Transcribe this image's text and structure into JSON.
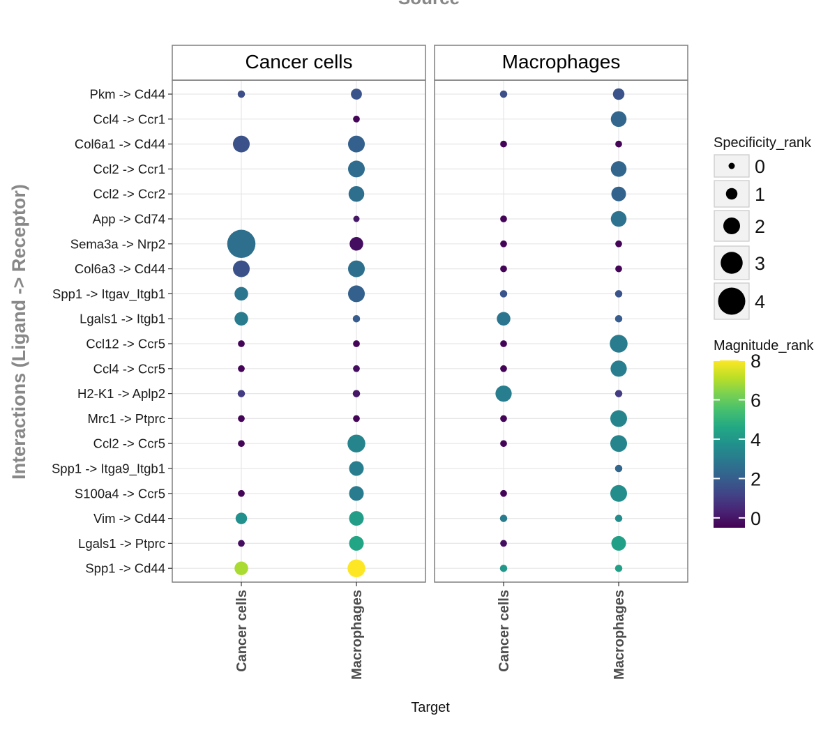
{
  "chart_data": {
    "type": "scatter",
    "title": "Source",
    "xlabel": "Target",
    "ylabel": "Interactions (Ligand -> Receptor)",
    "facets": [
      "Cancer cells",
      "Macrophages"
    ],
    "targets": [
      "Cancer cells",
      "Macrophages"
    ],
    "interactions": [
      "Pkm -> Cd44",
      "Ccl4 -> Ccr1",
      "Col6a1 -> Cd44",
      "Ccl2 -> Ccr1",
      "Ccl2 -> Ccr2",
      "App -> Cd74",
      "Sema3a -> Nrp2",
      "Col6a3 -> Cd44",
      "Spp1 -> Itgav_Itgb1",
      "Lgals1 -> Itgb1",
      "Ccl12 -> Ccr5",
      "Ccl4 -> Ccr5",
      "H2-K1 -> Aplp2",
      "Mrc1 -> Ptprc",
      "Ccl2 -> Ccr5",
      "Spp1 -> Itga9_Itgb1",
      "S100a4 -> Ccr5",
      "Vim -> Cd44",
      "Lgals1 -> Ptprc",
      "Spp1 -> Cd44"
    ],
    "points": [
      {
        "source": "Cancer cells",
        "target": "Cancer cells",
        "interaction": "Pkm -> Cd44",
        "specificity_rank": 0.2,
        "magnitude_rank": 1.5
      },
      {
        "source": "Cancer cells",
        "target": "Macrophages",
        "interaction": "Pkm -> Cd44",
        "specificity_rank": 0.9,
        "magnitude_rank": 1.7
      },
      {
        "source": "Macrophages",
        "target": "Cancer cells",
        "interaction": "Pkm -> Cd44",
        "specificity_rank": 0.2,
        "magnitude_rank": 1.5
      },
      {
        "source": "Macrophages",
        "target": "Macrophages",
        "interaction": "Pkm -> Cd44",
        "specificity_rank": 1.0,
        "magnitude_rank": 1.7
      },
      {
        "source": "Cancer cells",
        "target": "Macrophages",
        "interaction": "Ccl4 -> Ccr1",
        "specificity_rank": 0.1,
        "magnitude_rank": -0.4
      },
      {
        "source": "Macrophages",
        "target": "Macrophages",
        "interaction": "Ccl4 -> Ccr1",
        "specificity_rank": 1.8,
        "magnitude_rank": 2.3
      },
      {
        "source": "Cancer cells",
        "target": "Cancer cells",
        "interaction": "Col6a1 -> Cd44",
        "specificity_rank": 2.0,
        "magnitude_rank": 1.6
      },
      {
        "source": "Cancer cells",
        "target": "Macrophages",
        "interaction": "Col6a1 -> Cd44",
        "specificity_rank": 2.0,
        "magnitude_rank": 2.1
      },
      {
        "source": "Macrophages",
        "target": "Cancer cells",
        "interaction": "Col6a1 -> Cd44",
        "specificity_rank": 0.1,
        "magnitude_rank": -0.4
      },
      {
        "source": "Macrophages",
        "target": "Macrophages",
        "interaction": "Col6a1 -> Cd44",
        "specificity_rank": 0.1,
        "magnitude_rank": -0.4
      },
      {
        "source": "Cancer cells",
        "target": "Macrophages",
        "interaction": "Ccl2 -> Ccr1",
        "specificity_rank": 2.0,
        "magnitude_rank": 2.5
      },
      {
        "source": "Macrophages",
        "target": "Macrophages",
        "interaction": "Ccl2 -> Ccr1",
        "specificity_rank": 1.8,
        "magnitude_rank": 2.3
      },
      {
        "source": "Cancer cells",
        "target": "Macrophages",
        "interaction": "Ccl2 -> Ccr2",
        "specificity_rank": 1.8,
        "magnitude_rank": 2.6
      },
      {
        "source": "Macrophages",
        "target": "Macrophages",
        "interaction": "Ccl2 -> Ccr2",
        "specificity_rank": 1.6,
        "magnitude_rank": 2.2
      },
      {
        "source": "Cancer cells",
        "target": "Macrophages",
        "interaction": "App -> Cd74",
        "specificity_rank": 0.0,
        "magnitude_rank": 0.0
      },
      {
        "source": "Macrophages",
        "target": "Cancer cells",
        "interaction": "App -> Cd74",
        "specificity_rank": 0.1,
        "magnitude_rank": -0.4
      },
      {
        "source": "Macrophages",
        "target": "Macrophages",
        "interaction": "App -> Cd74",
        "specificity_rank": 1.8,
        "magnitude_rank": 2.7
      },
      {
        "source": "Cancer cells",
        "target": "Cancer cells",
        "interaction": "Sema3a -> Nrp2",
        "specificity_rank": 4.2,
        "magnitude_rank": 2.6
      },
      {
        "source": "Cancer cells",
        "target": "Macrophages",
        "interaction": "Sema3a -> Nrp2",
        "specificity_rank": 1.4,
        "magnitude_rank": -0.2
      },
      {
        "source": "Macrophages",
        "target": "Cancer cells",
        "interaction": "Sema3a -> Nrp2",
        "specificity_rank": 0.1,
        "magnitude_rank": -0.4
      },
      {
        "source": "Macrophages",
        "target": "Macrophages",
        "interaction": "Sema3a -> Nrp2",
        "specificity_rank": 0.1,
        "magnitude_rank": -0.4
      },
      {
        "source": "Cancer cells",
        "target": "Cancer cells",
        "interaction": "Col6a3 -> Cd44",
        "specificity_rank": 2.0,
        "magnitude_rank": 1.6
      },
      {
        "source": "Cancer cells",
        "target": "Macrophages",
        "interaction": "Col6a3 -> Cd44",
        "specificity_rank": 2.0,
        "magnitude_rank": 2.6
      },
      {
        "source": "Macrophages",
        "target": "Cancer cells",
        "interaction": "Col6a3 -> Cd44",
        "specificity_rank": 0.1,
        "magnitude_rank": -0.4
      },
      {
        "source": "Macrophages",
        "target": "Macrophages",
        "interaction": "Col6a3 -> Cd44",
        "specificity_rank": 0.1,
        "magnitude_rank": -0.4
      },
      {
        "source": "Cancer cells",
        "target": "Cancer cells",
        "interaction": "Spp1 -> Itgav_Itgb1",
        "specificity_rank": 1.4,
        "magnitude_rank": 2.8
      },
      {
        "source": "Cancer cells",
        "target": "Macrophages",
        "interaction": "Spp1 -> Itgav_Itgb1",
        "specificity_rank": 2.0,
        "magnitude_rank": 2.1
      },
      {
        "source": "Macrophages",
        "target": "Cancer cells",
        "interaction": "Spp1 -> Itgav_Itgb1",
        "specificity_rank": 0.2,
        "magnitude_rank": 1.7
      },
      {
        "source": "Macrophages",
        "target": "Macrophages",
        "interaction": "Spp1 -> Itgav_Itgb1",
        "specificity_rank": 0.2,
        "magnitude_rank": 1.7
      },
      {
        "source": "Cancer cells",
        "target": "Cancer cells",
        "interaction": "Lgals1 -> Itgb1",
        "specificity_rank": 1.4,
        "magnitude_rank": 3.0
      },
      {
        "source": "Cancer cells",
        "target": "Macrophages",
        "interaction": "Lgals1 -> Itgb1",
        "specificity_rank": 0.2,
        "magnitude_rank": 2.0
      },
      {
        "source": "Macrophages",
        "target": "Cancer cells",
        "interaction": "Lgals1 -> Itgb1",
        "specificity_rank": 1.4,
        "magnitude_rank": 2.8
      },
      {
        "source": "Macrophages",
        "target": "Macrophages",
        "interaction": "Lgals1 -> Itgb1",
        "specificity_rank": 0.2,
        "magnitude_rank": 2.0
      },
      {
        "source": "Cancer cells",
        "target": "Cancer cells",
        "interaction": "Ccl12 -> Ccr5",
        "specificity_rank": 0.1,
        "magnitude_rank": -0.4
      },
      {
        "source": "Cancer cells",
        "target": "Macrophages",
        "interaction": "Ccl12 -> Ccr5",
        "specificity_rank": 0.1,
        "magnitude_rank": -0.4
      },
      {
        "source": "Macrophages",
        "target": "Cancer cells",
        "interaction": "Ccl12 -> Ccr5",
        "specificity_rank": 0.1,
        "magnitude_rank": -0.4
      },
      {
        "source": "Macrophages",
        "target": "Macrophages",
        "interaction": "Ccl12 -> Ccr5",
        "specificity_rank": 2.2,
        "magnitude_rank": 3.0
      },
      {
        "source": "Cancer cells",
        "target": "Cancer cells",
        "interaction": "Ccl4 -> Ccr5",
        "specificity_rank": 0.1,
        "magnitude_rank": -0.4
      },
      {
        "source": "Cancer cells",
        "target": "Macrophages",
        "interaction": "Ccl4 -> Ccr5",
        "specificity_rank": 0.1,
        "magnitude_rank": -0.2
      },
      {
        "source": "Macrophages",
        "target": "Cancer cells",
        "interaction": "Ccl4 -> Ccr5",
        "specificity_rank": 0.1,
        "magnitude_rank": -0.4
      },
      {
        "source": "Macrophages",
        "target": "Macrophages",
        "interaction": "Ccl4 -> Ccr5",
        "specificity_rank": 1.9,
        "magnitude_rank": 3.1
      },
      {
        "source": "Cancer cells",
        "target": "Cancer cells",
        "interaction": "H2-K1 -> Aplp2",
        "specificity_rank": 0.2,
        "magnitude_rank": 1.0
      },
      {
        "source": "Cancer cells",
        "target": "Macrophages",
        "interaction": "H2-K1 -> Aplp2",
        "specificity_rank": 0.2,
        "magnitude_rank": 0.0
      },
      {
        "source": "Macrophages",
        "target": "Cancer cells",
        "interaction": "H2-K1 -> Aplp2",
        "specificity_rank": 1.9,
        "magnitude_rank": 3.1
      },
      {
        "source": "Macrophages",
        "target": "Macrophages",
        "interaction": "H2-K1 -> Aplp2",
        "specificity_rank": 0.2,
        "magnitude_rank": 1.0
      },
      {
        "source": "Cancer cells",
        "target": "Cancer cells",
        "interaction": "Mrc1 -> Ptprc",
        "specificity_rank": 0.1,
        "magnitude_rank": -0.4
      },
      {
        "source": "Cancer cells",
        "target": "Macrophages",
        "interaction": "Mrc1 -> Ptprc",
        "specificity_rank": 0.1,
        "magnitude_rank": -0.4
      },
      {
        "source": "Macrophages",
        "target": "Cancer cells",
        "interaction": "Mrc1 -> Ptprc",
        "specificity_rank": 0.1,
        "magnitude_rank": -0.4
      },
      {
        "source": "Macrophages",
        "target": "Macrophages",
        "interaction": "Mrc1 -> Ptprc",
        "specificity_rank": 2.0,
        "magnitude_rank": 3.3
      },
      {
        "source": "Cancer cells",
        "target": "Cancer cells",
        "interaction": "Ccl2 -> Ccr5",
        "specificity_rank": 0.1,
        "magnitude_rank": -0.4
      },
      {
        "source": "Cancer cells",
        "target": "Macrophages",
        "interaction": "Ccl2 -> Ccr5",
        "specificity_rank": 2.2,
        "magnitude_rank": 3.3
      },
      {
        "source": "Macrophages",
        "target": "Cancer cells",
        "interaction": "Ccl2 -> Ccr5",
        "specificity_rank": 0.1,
        "magnitude_rank": -0.4
      },
      {
        "source": "Macrophages",
        "target": "Macrophages",
        "interaction": "Ccl2 -> Ccr5",
        "specificity_rank": 2.0,
        "magnitude_rank": 3.3
      },
      {
        "source": "Cancer cells",
        "target": "Macrophages",
        "interaction": "Spp1 -> Itga9_Itgb1",
        "specificity_rank": 1.6,
        "magnitude_rank": 3.1
      },
      {
        "source": "Macrophages",
        "target": "Macrophages",
        "interaction": "Spp1 -> Itga9_Itgb1",
        "specificity_rank": 0.2,
        "magnitude_rank": 2.3
      },
      {
        "source": "Cancer cells",
        "target": "Cancer cells",
        "interaction": "S100a4 -> Ccr5",
        "specificity_rank": 0.1,
        "magnitude_rank": -0.4
      },
      {
        "source": "Cancer cells",
        "target": "Macrophages",
        "interaction": "S100a4 -> Ccr5",
        "specificity_rank": 1.6,
        "magnitude_rank": 3.0
      },
      {
        "source": "Macrophages",
        "target": "Cancer cells",
        "interaction": "S100a4 -> Ccr5",
        "specificity_rank": 0.1,
        "magnitude_rank": -0.4
      },
      {
        "source": "Macrophages",
        "target": "Macrophages",
        "interaction": "S100a4 -> Ccr5",
        "specificity_rank": 2.0,
        "magnitude_rank": 3.6
      },
      {
        "source": "Cancer cells",
        "target": "Cancer cells",
        "interaction": "Vim -> Cd44",
        "specificity_rank": 1.0,
        "magnitude_rank": 3.7
      },
      {
        "source": "Cancer cells",
        "target": "Macrophages",
        "interaction": "Vim -> Cd44",
        "specificity_rank": 1.6,
        "magnitude_rank": 4.2
      },
      {
        "source": "Macrophages",
        "target": "Cancer cells",
        "interaction": "Vim -> Cd44",
        "specificity_rank": 0.2,
        "magnitude_rank": 3.0
      },
      {
        "source": "Macrophages",
        "target": "Macrophages",
        "interaction": "Vim -> Cd44",
        "specificity_rank": 0.2,
        "magnitude_rank": 3.6
      },
      {
        "source": "Cancer cells",
        "target": "Cancer cells",
        "interaction": "Lgals1 -> Ptprc",
        "specificity_rank": 0.1,
        "magnitude_rank": -0.2
      },
      {
        "source": "Cancer cells",
        "target": "Macrophages",
        "interaction": "Lgals1 -> Ptprc",
        "specificity_rank": 1.6,
        "magnitude_rank": 4.5
      },
      {
        "source": "Macrophages",
        "target": "Cancer cells",
        "interaction": "Lgals1 -> Ptprc",
        "specificity_rank": 0.1,
        "magnitude_rank": -0.2
      },
      {
        "source": "Macrophages",
        "target": "Macrophages",
        "interaction": "Lgals1 -> Ptprc",
        "specificity_rank": 1.6,
        "magnitude_rank": 4.3
      },
      {
        "source": "Cancer cells",
        "target": "Cancer cells",
        "interaction": "Spp1 -> Cd44",
        "specificity_rank": 1.4,
        "magnitude_rank": 6.9
      },
      {
        "source": "Cancer cells",
        "target": "Macrophages",
        "interaction": "Spp1 -> Cd44",
        "specificity_rank": 2.2,
        "magnitude_rank": 8.0
      },
      {
        "source": "Macrophages",
        "target": "Cancer cells",
        "interaction": "Spp1 -> Cd44",
        "specificity_rank": 0.2,
        "magnitude_rank": 4.0
      },
      {
        "source": "Macrophages",
        "target": "Macrophages",
        "interaction": "Spp1 -> Cd44",
        "specificity_rank": 0.2,
        "magnitude_rank": 4.3
      }
    ],
    "size_legend": {
      "title": "Specificity_rank",
      "values": [
        0,
        1,
        2,
        3,
        4
      ]
    },
    "color_legend": {
      "title": "Magnitude_rank",
      "ticks": [
        0,
        2,
        4,
        6,
        8
      ],
      "range": [
        -0.5,
        8
      ],
      "colormap": "viridis"
    },
    "grid": true,
    "legend_placement": "right"
  }
}
